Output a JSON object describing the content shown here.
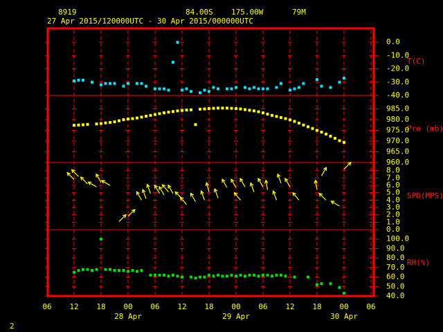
{
  "chart_data": {
    "type": "meteogram",
    "station": "8919",
    "latitude": "84.00S",
    "longitude": "175.00W",
    "elevation": "79M",
    "period": "27 Apr 2015/120000UTC - 30 Apr 2015/000000UTC",
    "page": "2",
    "xlim": [
      "2015-04-27T06:00Z",
      "2015-04-30T06:00Z"
    ],
    "xticks": [
      {
        "value": "2015-04-27T06:00Z",
        "label": "06"
      },
      {
        "value": "2015-04-27T12:00Z",
        "label": "12"
      },
      {
        "value": "2015-04-27T18:00Z",
        "label": "18"
      },
      {
        "value": "2015-04-28T00:00Z",
        "label": "00"
      },
      {
        "value": "2015-04-28T06:00Z",
        "label": "06"
      },
      {
        "value": "2015-04-28T12:00Z",
        "label": "12"
      },
      {
        "value": "2015-04-28T18:00Z",
        "label": "18"
      },
      {
        "value": "2015-04-29T00:00Z",
        "label": "00"
      },
      {
        "value": "2015-04-29T06:00Z",
        "label": "06"
      },
      {
        "value": "2015-04-29T12:00Z",
        "label": "12"
      },
      {
        "value": "2015-04-29T18:00Z",
        "label": "18"
      },
      {
        "value": "2015-04-30T00:00Z",
        "label": "00"
      },
      {
        "value": "2015-04-30T06:00Z",
        "label": "06"
      }
    ],
    "date_labels": [
      {
        "value": "2015-04-28T00:00Z",
        "label": "28 Apr"
      },
      {
        "value": "2015-04-29T00:00Z",
        "label": "29 Apr"
      },
      {
        "value": "2015-04-30T00:00Z",
        "label": "30 Apr"
      }
    ],
    "x": [
      "2015-04-27T12:00Z",
      "2015-04-27T13:00Z",
      "2015-04-27T14:00Z",
      "2015-04-27T15:00Z",
      "2015-04-27T16:00Z",
      "2015-04-27T17:00Z",
      "2015-04-27T18:00Z",
      "2015-04-27T19:00Z",
      "2015-04-27T20:00Z",
      "2015-04-27T21:00Z",
      "2015-04-27T22:00Z",
      "2015-04-27T23:00Z",
      "2015-04-28T00:00Z",
      "2015-04-28T01:00Z",
      "2015-04-28T02:00Z",
      "2015-04-28T03:00Z",
      "2015-04-28T04:00Z",
      "2015-04-28T05:00Z",
      "2015-04-28T06:00Z",
      "2015-04-28T07:00Z",
      "2015-04-28T08:00Z",
      "2015-04-28T09:00Z",
      "2015-04-28T10:00Z",
      "2015-04-28T11:00Z",
      "2015-04-28T12:00Z",
      "2015-04-28T13:00Z",
      "2015-04-28T14:00Z",
      "2015-04-28T15:00Z",
      "2015-04-28T16:00Z",
      "2015-04-28T17:00Z",
      "2015-04-28T18:00Z",
      "2015-04-28T19:00Z",
      "2015-04-28T20:00Z",
      "2015-04-28T21:00Z",
      "2015-04-28T22:00Z",
      "2015-04-28T23:00Z",
      "2015-04-29T00:00Z",
      "2015-04-29T01:00Z",
      "2015-04-29T02:00Z",
      "2015-04-29T03:00Z",
      "2015-04-29T04:00Z",
      "2015-04-29T05:00Z",
      "2015-04-29T06:00Z",
      "2015-04-29T07:00Z",
      "2015-04-29T08:00Z",
      "2015-04-29T09:00Z",
      "2015-04-29T10:00Z",
      "2015-04-29T11:00Z",
      "2015-04-29T12:00Z",
      "2015-04-29T13:00Z",
      "2015-04-29T14:00Z",
      "2015-04-29T15:00Z",
      "2015-04-29T16:00Z",
      "2015-04-29T17:00Z",
      "2015-04-29T18:00Z",
      "2015-04-29T19:00Z",
      "2015-04-29T20:00Z",
      "2015-04-29T21:00Z",
      "2015-04-29T22:00Z",
      "2015-04-29T23:00Z",
      "2015-04-30T00:00Z"
    ],
    "panels": [
      {
        "label": "T(C)",
        "mark": "square",
        "color": "#00e5ff",
        "ylim": [
          -40,
          11
        ],
        "yticks": [
          {
            "value": 0,
            "label": "0.0"
          },
          {
            "value": -10,
            "label": "-10.0"
          },
          {
            "value": -20,
            "label": "-20.0"
          },
          {
            "value": -30,
            "label": "-30.0"
          },
          {
            "value": -40,
            "label": "-40.0"
          }
        ],
        "values": [
          -29,
          -28.5,
          -28.5,
          null,
          -30,
          null,
          -32,
          -31,
          -31,
          -31,
          null,
          -33,
          -31,
          null,
          -31,
          -31,
          -33,
          null,
          -35,
          -35,
          -35,
          -36,
          -15,
          0,
          -36,
          -35,
          -37,
          null,
          -38,
          -36,
          -37,
          -34,
          -35,
          null,
          -35,
          -35,
          -34,
          null,
          -34,
          -35,
          -34,
          -35,
          -35,
          -35,
          null,
          -34,
          -31,
          null,
          -36,
          -35,
          -34,
          -31,
          null,
          null,
          -28,
          -33,
          null,
          -34,
          null,
          -30,
          -27
        ]
      },
      {
        "label": "Pre (mb)",
        "mark": "square",
        "color": "#ffff00",
        "ylim": [
          960,
          991.3
        ],
        "yticks": [
          {
            "value": 985,
            "label": "985.0"
          },
          {
            "value": 980,
            "label": "980.0"
          },
          {
            "value": 975,
            "label": "975.0"
          },
          {
            "value": 970,
            "label": "970.0"
          },
          {
            "value": 965,
            "label": "965.0"
          },
          {
            "value": 960,
            "label": "960.0"
          }
        ],
        "values": [
          977.4,
          977.5,
          977.6,
          977.8,
          null,
          978.0,
          978.2,
          978.5,
          978.7,
          979.0,
          979.5,
          980.0,
          980.3,
          980.5,
          980.8,
          981.2,
          981.6,
          982.0,
          982.4,
          982.8,
          983.2,
          983.5,
          983.8,
          984.1,
          984.3,
          984.5,
          984.6,
          977.7,
          984.9,
          985.0,
          985.2,
          985.3,
          985.4,
          985.4,
          985.4,
          985.3,
          985.2,
          985.0,
          984.7,
          984.4,
          984.1,
          983.7,
          983.2,
          982.6,
          982.0,
          981.5,
          981.0,
          980.5,
          979.9,
          979.2,
          978.4,
          977.5,
          976.7,
          975.9,
          975.0,
          974.2,
          973.3,
          972.3,
          971.3,
          970.2,
          969.4
        ]
      },
      {
        "label": "SPD(MPS)",
        "mark": "arrow",
        "color": "#ffff00",
        "ylim": [
          0,
          9.1
        ],
        "yticks": [
          {
            "value": 8,
            "label": "8.0"
          },
          {
            "value": 7,
            "label": "7.0"
          },
          {
            "value": 6,
            "label": "6.0"
          },
          {
            "value": 5,
            "label": "5.0"
          },
          {
            "value": 4,
            "label": "4.0"
          },
          {
            "value": 3,
            "label": "3.0"
          },
          {
            "value": 2,
            "label": "2.0"
          },
          {
            "value": 1,
            "label": "1.0"
          },
          {
            "value": 0,
            "label": "0.0"
          }
        ],
        "values": [
          6.8,
          7.2,
          null,
          6.2,
          null,
          5.8,
          6.4,
          null,
          6.0,
          null,
          1.1,
          null,
          1.8,
          null,
          null,
          4.0,
          4.2,
          4.9,
          null,
          4.9,
          4.7,
          5.1,
          4.9,
          null,
          4.2,
          3.4,
          null,
          3.8,
          null,
          4.0,
          5.1,
          null,
          4.3,
          null,
          5.7,
          null,
          5.7,
          4.0,
          5.8,
          null,
          5.1,
          null,
          5.8,
          5.4,
          null,
          4.0,
          6.3,
          null,
          5.8,
          null,
          4.0,
          null,
          null,
          null,
          5.4,
          7.3,
          4.0,
          null,
          null,
          3.2,
          8.2
        ],
        "directions": [
          135,
          135,
          null,
          135,
          null,
          120,
          150,
          null,
          120,
          null,
          225,
          null,
          225,
          null,
          null,
          150,
          160,
          160,
          null,
          150,
          150,
          140,
          150,
          null,
          135,
          140,
          null,
          150,
          null,
          160,
          165,
          null,
          160,
          null,
          150,
          null,
          150,
          140,
          150,
          null,
          160,
          null,
          150,
          170,
          null,
          160,
          160,
          null,
          150,
          null,
          140,
          null,
          null,
          null,
          170,
          210,
          135,
          null,
          null,
          120,
          225
        ]
      },
      {
        "label": "RH(%)",
        "mark": "square",
        "color": "#00dd00",
        "ylim": [
          40,
          110
        ],
        "yticks": [
          {
            "value": 100,
            "label": "100.0"
          },
          {
            "value": 90,
            "label": "90.0"
          },
          {
            "value": 80,
            "label": "80.0"
          },
          {
            "value": 70,
            "label": "70.0"
          },
          {
            "value": 60,
            "label": "60.0"
          },
          {
            "value": 50,
            "label": "50.0"
          },
          {
            "value": 40,
            "label": "40.0"
          }
        ],
        "values": [
          65,
          67,
          68,
          68,
          67,
          68,
          100,
          68,
          68,
          67,
          67,
          67,
          66,
          67,
          66,
          67,
          null,
          62,
          62,
          62,
          62,
          61,
          62,
          61,
          60,
          null,
          60,
          59,
          60,
          60,
          62,
          61,
          62,
          61,
          61,
          62,
          61,
          62,
          61,
          62,
          62,
          61,
          62,
          62,
          61,
          62,
          62,
          61,
          null,
          60,
          null,
          null,
          60,
          null,
          52,
          53,
          null,
          53,
          null,
          49,
          43
        ]
      }
    ]
  }
}
